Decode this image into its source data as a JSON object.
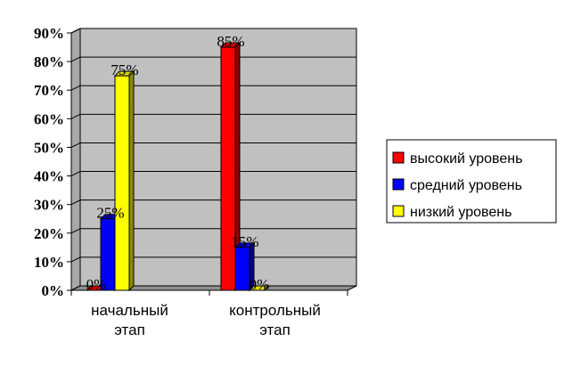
{
  "chart_data": {
    "type": "bar",
    "title": "",
    "categories": [
      [
        "начальный",
        "этап"
      ],
      [
        "контрольный",
        "этап"
      ]
    ],
    "series": [
      {
        "name": "высокий уровень",
        "color": "#ff0000",
        "values": [
          0,
          85
        ],
        "labels": [
          "0%",
          "85%"
        ]
      },
      {
        "name": "средний уровень",
        "color": "#0000ff",
        "values": [
          25,
          15
        ],
        "labels": [
          "25%",
          "15%"
        ]
      },
      {
        "name": "низкий уровень",
        "color": "#ffff00",
        "values": [
          75,
          0
        ],
        "labels": [
          "75%",
          "0%"
        ]
      }
    ],
    "y_ticks": [
      "0%",
      "10%",
      "20%",
      "30%",
      "40%",
      "50%",
      "60%",
      "70%",
      "80%",
      "90%"
    ],
    "ylim": [
      0,
      90
    ],
    "grid": true,
    "legend_position": "right",
    "style": "3d-column",
    "plot_background": "#c0c0c0"
  }
}
